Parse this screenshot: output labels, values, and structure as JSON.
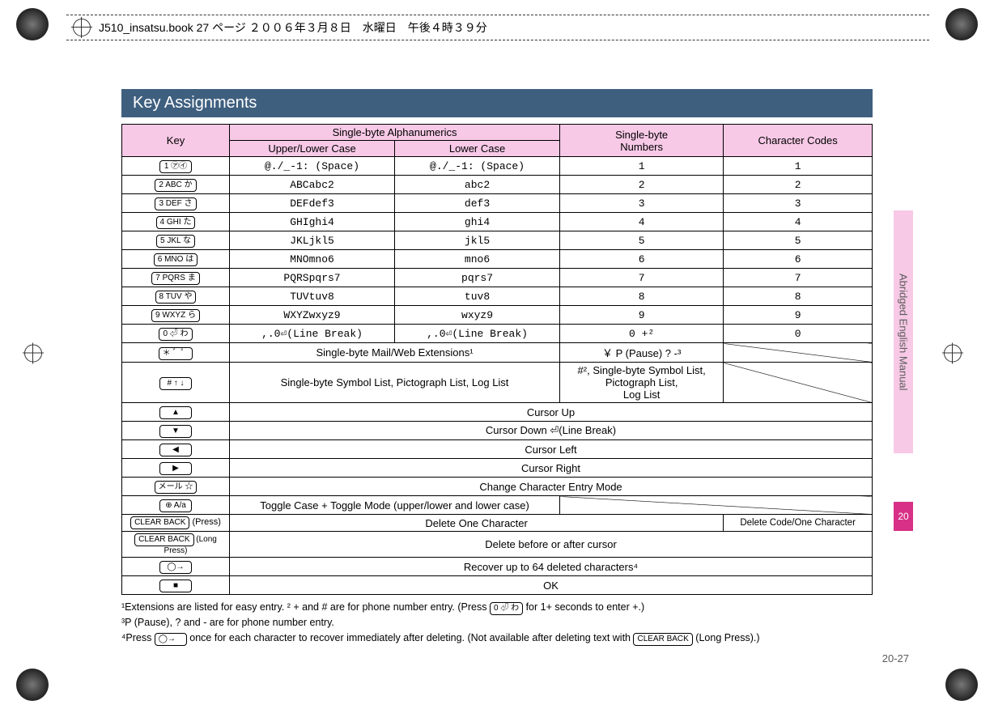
{
  "header": {
    "filename": "J510_insatsu.book  27 ページ   ２００６年３月８日　水曜日　午後４時３９分"
  },
  "section_title": "Key Assignments",
  "table": {
    "headers": {
      "key": "Key",
      "alpha": "Single-byte Alphanumerics",
      "upper_lower": "Upper/Lower Case",
      "lower": "Lower Case",
      "numbers": "Single-byte\nNumbers",
      "codes": "Character Codes"
    },
    "rows": [
      {
        "key": "1 ㋐㋑",
        "upper": "@./_-1: (Space)",
        "lower": "@./_-1: (Space)",
        "num": "1",
        "code": "1"
      },
      {
        "key": "2 ABC か",
        "upper": "ABCabc2",
        "lower": "abc2",
        "num": "2",
        "code": "2"
      },
      {
        "key": "3 DEF さ",
        "upper": "DEFdef3",
        "lower": "def3",
        "num": "3",
        "code": "3"
      },
      {
        "key": "4 GHI た",
        "upper": "GHIghi4",
        "lower": "ghi4",
        "num": "4",
        "code": "4"
      },
      {
        "key": "5 JKL な",
        "upper": "JKLjkl5",
        "lower": "jkl5",
        "num": "5",
        "code": "5"
      },
      {
        "key": "6 MNO は",
        "upper": "MNOmno6",
        "lower": "mno6",
        "num": "6",
        "code": "6"
      },
      {
        "key": "7 PQRS ま",
        "upper": "PQRSpqrs7",
        "lower": "pqrs7",
        "num": "7",
        "code": "7"
      },
      {
        "key": "8 TUV や",
        "upper": "TUVtuv8",
        "lower": "tuv8",
        "num": "8",
        "code": "8"
      },
      {
        "key": "9 WXYZ ら",
        "upper": "WXYZwxyz9",
        "lower": "wxyz9",
        "num": "9",
        "code": "9"
      },
      {
        "key": "0 ⏎ わ",
        "upper": ",.0⏎(Line Break)",
        "lower": ",.0⏎(Line Break)",
        "num": "0 +²",
        "code": "0"
      }
    ],
    "star_row": {
      "key": "＊ ゛゜",
      "alpha_span": "Single-byte Mail/Web Extensions¹",
      "num": "￥ P (Pause) ? -³"
    },
    "hash_row": {
      "key": "# ↑ ↓",
      "alpha_span": "Single-byte Symbol List, Pictograph List, Log List",
      "num": "#², Single-byte Symbol List,\nPictograph List,\nLog List"
    },
    "cursor_rows": [
      {
        "key": "▲",
        "text": "Cursor Up"
      },
      {
        "key": "▼",
        "text": "Cursor Down ⏎(Line Break)"
      },
      {
        "key": "◀",
        "text": "Cursor Left"
      },
      {
        "key": "▶",
        "text": "Cursor Right"
      },
      {
        "key": "メール ☆",
        "text": "Change Character Entry Mode"
      }
    ],
    "toggle_row": {
      "key": "⊕ A/a",
      "text": "Toggle  Case + Toggle Mode (upper/lower and lower case)"
    },
    "clear_rows": [
      {
        "key_label": "CLEAR BACK",
        "suffix": " (Press)",
        "alpha_span": "Delete One Character",
        "code": "Delete Code/One Character"
      },
      {
        "key_label": "CLEAR BACK",
        "suffix": " (Long Press)",
        "full": "Delete before or after cursor"
      }
    ],
    "recover_row": {
      "key": "◯→",
      "text": "Recover up to 64 deleted characters⁴"
    },
    "ok_row": {
      "key": "■",
      "text": "OK"
    }
  },
  "footnotes": {
    "line1a": "¹Extensions are listed for easy entry.   ",
    "line1b": "² + and # are for phone number entry. (Press ",
    "line1c": " for 1+ seconds to enter +.)",
    "key0": "0 ⏎ わ",
    "line2": "³P (Pause), ? and - are for phone number entry.",
    "line3a": "⁴Press ",
    "line3b": " once for each character to recover immediately after deleting. (Not available after deleting text with ",
    "line3c": " (Long Press).)",
    "circle_key": "◯→",
    "clear_key": "CLEAR BACK"
  },
  "side": {
    "tab_text": "Abridged English Manual",
    "chapter": "20",
    "page": "20-27"
  }
}
